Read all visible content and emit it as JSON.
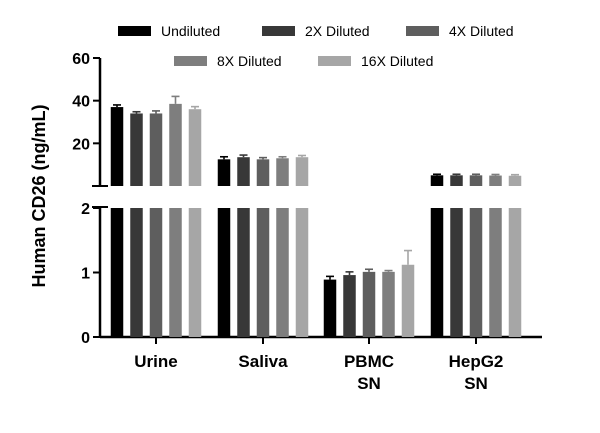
{
  "chart_data": {
    "type": "bar",
    "ylabel": "Human CD26 (ng/mL)",
    "categories": [
      "Urine",
      "Saliva",
      "PBMC\nSN",
      "HepG2\nSN"
    ],
    "y_axis": {
      "broken": true,
      "lower_range": [
        0,
        2
      ],
      "lower_ticks": [
        "0",
        "1",
        "2"
      ],
      "upper_range": [
        0,
        60
      ],
      "upper_ticks": [
        "20",
        "40",
        "60"
      ]
    },
    "legend": {
      "placement": "top"
    },
    "series": [
      {
        "name": "Undiluted",
        "color": "#000000",
        "values": [
          37.0,
          12.5,
          0.89,
          5.0
        ],
        "errors": [
          1.0,
          1.2,
          0.05,
          0.5
        ]
      },
      {
        "name": "2X Diluted",
        "color": "#383838",
        "values": [
          34.0,
          13.5,
          0.96,
          5.0
        ],
        "errors": [
          0.8,
          1.0,
          0.05,
          0.5
        ]
      },
      {
        "name": "4X Diluted",
        "color": "#5e5e5e",
        "values": [
          34.0,
          12.5,
          1.01,
          5.0
        ],
        "errors": [
          1.2,
          0.8,
          0.04,
          0.5
        ]
      },
      {
        "name": "8X Diluted",
        "color": "#7e7e7e",
        "values": [
          38.5,
          13.0,
          1.01,
          4.9
        ],
        "errors": [
          3.5,
          0.7,
          0.02,
          0.5
        ]
      },
      {
        "name": "16X Diluted",
        "color": "#a6a6a6",
        "values": [
          36.0,
          13.5,
          1.12,
          4.8
        ],
        "errors": [
          1.2,
          0.8,
          0.22,
          0.5
        ]
      }
    ]
  }
}
